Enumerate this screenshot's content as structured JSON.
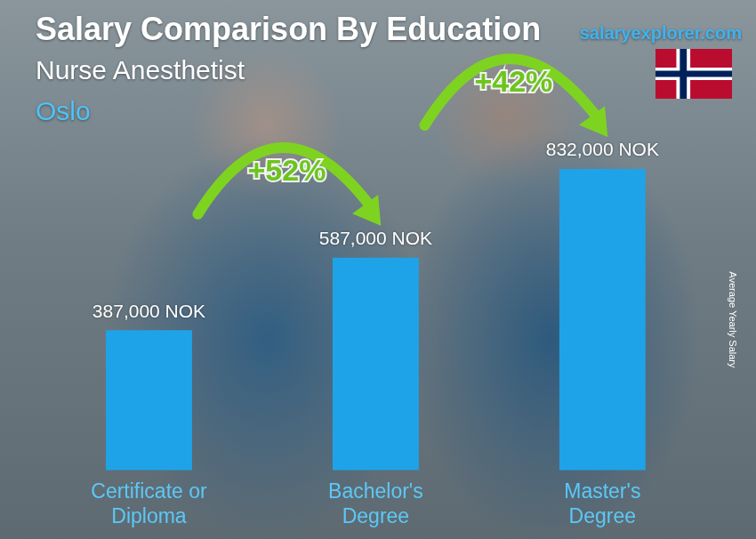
{
  "chart_data": {
    "type": "bar",
    "title": "Salary Comparison By Education",
    "subtitle": "Nurse Anesthetist",
    "location": "Oslo",
    "source": "salaryexplorer.com",
    "y_label": "Average Yearly Salary",
    "categories": [
      "Certificate or Diploma",
      "Bachelor's Degree",
      "Master's Degree"
    ],
    "values": [
      387000,
      587000,
      832000
    ],
    "value_labels": [
      "387,000 NOK",
      "587,000 NOK",
      "832,000 NOK"
    ],
    "data_labels": true,
    "annotations": [
      "+52%",
      "+42%"
    ],
    "color": "#1fa3e8",
    "grid": false,
    "tick_labels": "x"
  }
}
